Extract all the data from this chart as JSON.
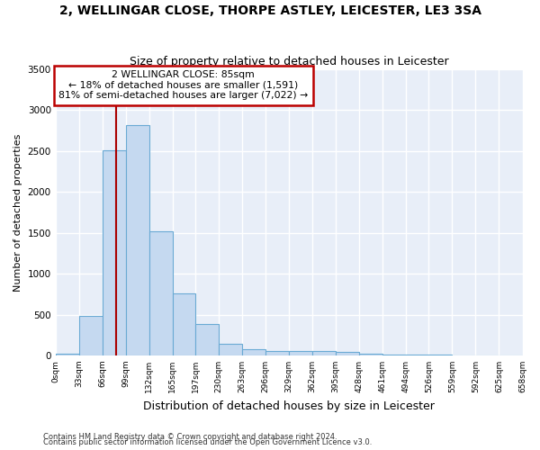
{
  "title1": "2, WELLINGAR CLOSE, THORPE ASTLEY, LEICESTER, LE3 3SA",
  "title2": "Size of property relative to detached houses in Leicester",
  "xlabel": "Distribution of detached houses by size in Leicester",
  "ylabel": "Number of detached properties",
  "bar_color": "#c5d9f0",
  "bar_edge_color": "#6aaad4",
  "background_color": "#e8eef8",
  "grid_color": "#ffffff",
  "annotation_box_edge_color": "#bb0000",
  "red_line_color": "#aa0000",
  "property_size": 85,
  "bin_edges": [
    0,
    33,
    66,
    99,
    132,
    165,
    197,
    230,
    263,
    296,
    329,
    362,
    395,
    428,
    461,
    494,
    526,
    559,
    592,
    625,
    658
  ],
  "bin_labels": [
    "0sqm",
    "33sqm",
    "66sqm",
    "99sqm",
    "132sqm",
    "165sqm",
    "197sqm",
    "230sqm",
    "263sqm",
    "296sqm",
    "329sqm",
    "362sqm",
    "395sqm",
    "428sqm",
    "461sqm",
    "494sqm",
    "526sqm",
    "559sqm",
    "592sqm",
    "625sqm",
    "658sqm"
  ],
  "bar_heights": [
    20,
    480,
    2510,
    2820,
    1520,
    755,
    390,
    145,
    80,
    55,
    55,
    55,
    40,
    20,
    5,
    5,
    5,
    2,
    2,
    2
  ],
  "ylim": [
    0,
    3500
  ],
  "yticks": [
    0,
    500,
    1000,
    1500,
    2000,
    2500,
    3000,
    3500
  ],
  "annotation_line1": "2 WELLINGAR CLOSE: 85sqm",
  "annotation_line2": "← 18% of detached houses are smaller (1,591)",
  "annotation_line3": "81% of semi-detached houses are larger (7,022) →",
  "footer1": "Contains HM Land Registry data © Crown copyright and database right 2024.",
  "footer2": "Contains public sector information licensed under the Open Government Licence v3.0."
}
